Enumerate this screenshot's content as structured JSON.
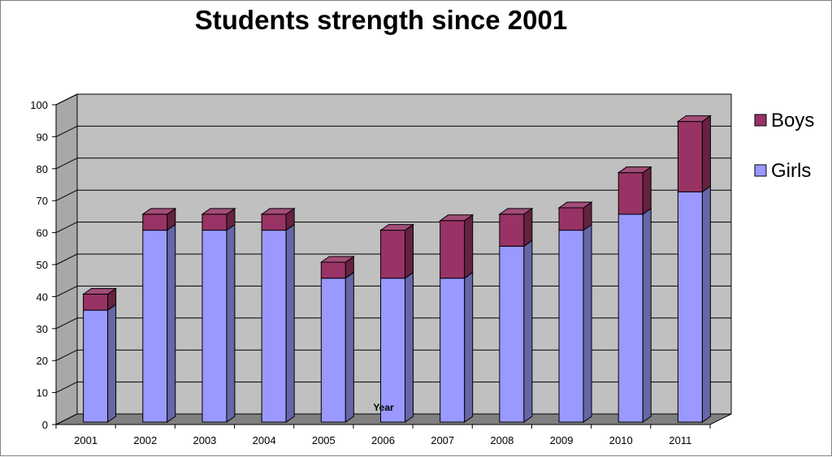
{
  "chart_data": {
    "type": "bar",
    "stacked": true,
    "three_d": true,
    "title": "Students strength since 2001",
    "xlabel": "Year",
    "ylabel": "",
    "categories": [
      "2001",
      "2002",
      "2003",
      "2004",
      "2005",
      "2006",
      "2007",
      "2008",
      "2009",
      "2010",
      "2011"
    ],
    "series": [
      {
        "name": "Girls",
        "values": [
          35,
          60,
          60,
          60,
          45,
          45,
          45,
          55,
          60,
          65,
          72
        ],
        "color": "#9999ff",
        "side_color": "#6666a8",
        "top_color": "#b3b3ff"
      },
      {
        "name": "Boys",
        "values": [
          5,
          5,
          5,
          5,
          5,
          15,
          18,
          10,
          7,
          13,
          22
        ],
        "color": "#993366",
        "side_color": "#66223f",
        "top_color": "#a34d79"
      }
    ],
    "ylim": [
      0,
      100
    ],
    "yticks": [
      0,
      10,
      20,
      30,
      40,
      50,
      60,
      70,
      80,
      90,
      100
    ],
    "grid": true,
    "legend_placement": "right",
    "wall_color": "#c0c0c0",
    "floor_color": "#808080"
  }
}
